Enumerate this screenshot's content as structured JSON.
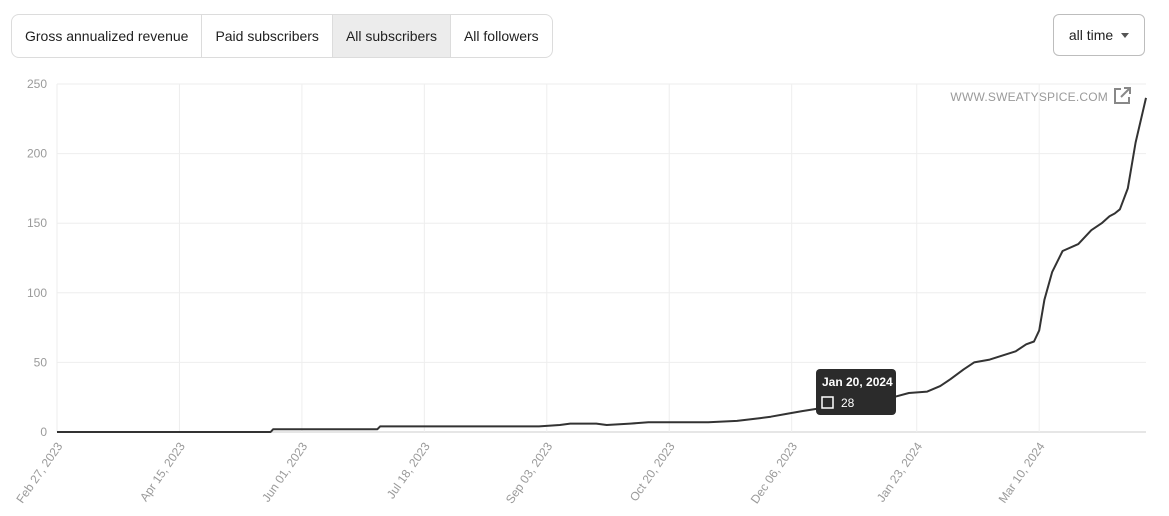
{
  "tabs": [
    {
      "label": "Gross annualized revenue",
      "active": false
    },
    {
      "label": "Paid subscribers",
      "active": false
    },
    {
      "label": "All subscribers",
      "active": true
    },
    {
      "label": "All followers",
      "active": false
    }
  ],
  "range_select": {
    "value": "all time"
  },
  "watermark": {
    "text": "WWW.SWEATYSPICE.COM",
    "icon": "external-link-icon"
  },
  "tooltip": {
    "date": "Jan 20, 2024",
    "value": "28"
  },
  "colors": {
    "line": "#333333",
    "grid": "#eeeeee",
    "tooltip_bg": "#2b2b2b"
  },
  "chart_data": {
    "type": "line",
    "title": "",
    "xlabel": "",
    "ylabel": "",
    "grid": true,
    "ylim": [
      0,
      250
    ],
    "yticks": [
      0,
      50,
      100,
      150,
      200,
      250
    ],
    "xlim": [
      "2023-02-27",
      "2024-04-20"
    ],
    "xticks": [
      "Feb 27, 2023",
      "Apr 15, 2023",
      "Jun 01, 2023",
      "Jul 18, 2023",
      "Sep 03, 2023",
      "Oct 20, 2023",
      "Dec 06, 2023",
      "Jan 23, 2024",
      "Mar 10, 2024"
    ],
    "series": [
      {
        "x": [
          "2023-02-27",
          "2023-05-20",
          "2023-05-21",
          "2023-06-30",
          "2023-07-01",
          "2023-08-31",
          "2023-09-08",
          "2023-09-12",
          "2023-09-22",
          "2023-09-26",
          "2023-10-05",
          "2023-10-12",
          "2023-11-04",
          "2023-11-15",
          "2023-11-24",
          "2023-11-28",
          "2023-12-04",
          "2023-12-10",
          "2023-12-17",
          "2023-12-24",
          "2024-01-01",
          "2024-01-08",
          "2024-01-14",
          "2024-01-20",
          "2024-01-27",
          "2024-02-01",
          "2024-02-05",
          "2024-02-10",
          "2024-02-14",
          "2024-02-20",
          "2024-02-25",
          "2024-03-01",
          "2024-03-05",
          "2024-03-08",
          "2024-03-10",
          "2024-03-12",
          "2024-03-15",
          "2024-03-19",
          "2024-03-25",
          "2024-03-30",
          "2024-04-03",
          "2024-04-06",
          "2024-04-08",
          "2024-04-10",
          "2024-04-13",
          "2024-04-16",
          "2024-04-20"
        ],
        "y": [
          0,
          0,
          2,
          2,
          4,
          4,
          5,
          6,
          6,
          5,
          6,
          7,
          7,
          8,
          10,
          11,
          13,
          15,
          17,
          18,
          20,
          22,
          25,
          28,
          29,
          33,
          38,
          45,
          50,
          52,
          55,
          58,
          63,
          65,
          73,
          95,
          115,
          130,
          135,
          145,
          150,
          155,
          157,
          160,
          175,
          208,
          240
        ]
      }
    ]
  }
}
